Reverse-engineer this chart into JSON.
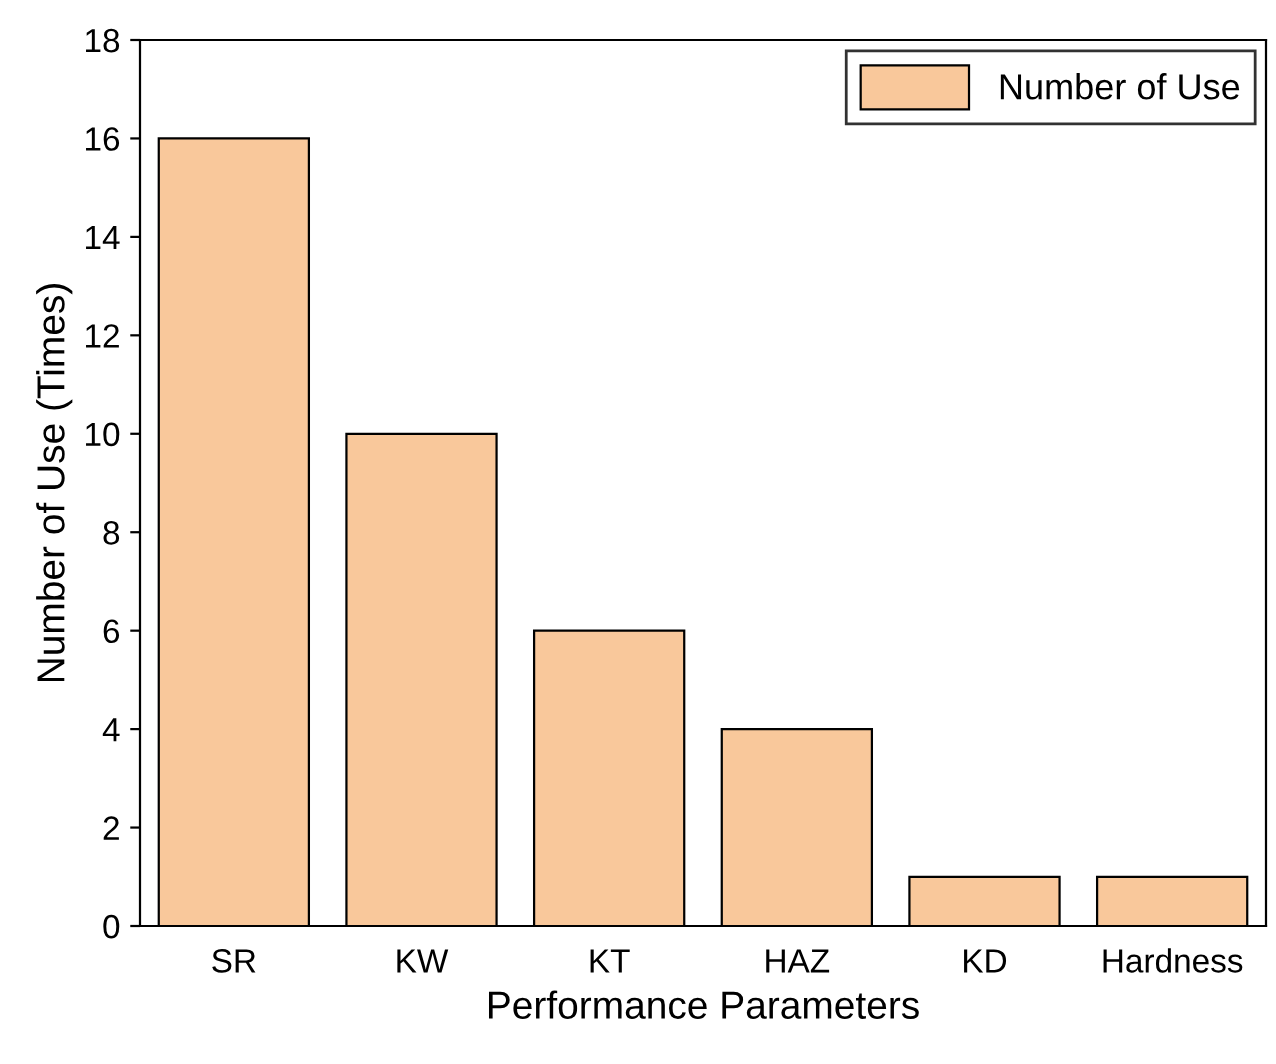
{
  "chart_data": {
    "type": "bar",
    "xlabel": "Performance Parameters",
    "ylabel": "Number of Use (Times)",
    "categories": [
      "SR",
      "KW",
      "KT",
      "HAZ",
      "KD",
      "Hardness"
    ],
    "series": [
      {
        "name": "Number of Use",
        "color": "#f9c89b",
        "values": [
          16,
          10,
          6,
          4,
          1,
          1
        ]
      }
    ],
    "ylim": [
      0,
      18
    ],
    "yticks": [
      0,
      2,
      4,
      6,
      8,
      10,
      12,
      14,
      16,
      18
    ],
    "grid": false,
    "legend": "top right"
  }
}
